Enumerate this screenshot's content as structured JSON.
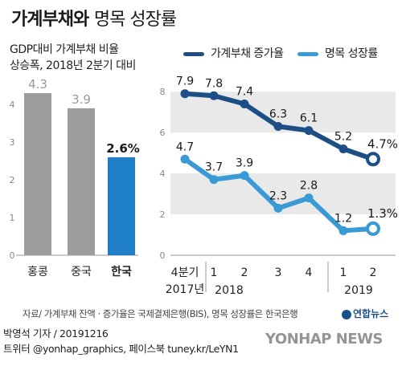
{
  "title": {
    "part1": "가계부채와",
    "part2": "명목 성장률"
  },
  "left_subtitle": {
    "line1": "GDP대비 가계부채 비율",
    "line2": "상승폭, 2018년 2분기 대비"
  },
  "legend": {
    "debt_label": "가계부채 증가율",
    "growth_label": "명목 성장률"
  },
  "colors": {
    "debt_line": "#1d4f86",
    "growth_line": "#3a9ad6",
    "bar_gray": "#9c9c9c",
    "bar_blue": "#1f7fc6",
    "band": "#e9e9e9"
  },
  "chart_data": [
    {
      "type": "bar",
      "categories": [
        "홍콩",
        "중국",
        "한국"
      ],
      "values": [
        4.3,
        3.9,
        2.6
      ],
      "value_labels": [
        "4.3",
        "3.9",
        "2.6%"
      ],
      "highlight_index": 2,
      "yticks": [
        "0",
        "1",
        "2",
        "3",
        "4"
      ],
      "ylim": [
        0,
        4.6
      ]
    },
    {
      "type": "line",
      "x_labels": [
        "4분기",
        "1",
        "2",
        "3",
        "4",
        "1",
        "2"
      ],
      "year_labels": [
        "2017년",
        "2018",
        "2019"
      ],
      "yticks": [
        "0",
        "2",
        "4",
        "6",
        "8"
      ],
      "ylim": [
        0,
        8.4
      ],
      "series": [
        {
          "name": "가계부채 증가율",
          "values": [
            7.9,
            7.8,
            7.4,
            6.3,
            6.1,
            5.2,
            4.7
          ],
          "labels": [
            "7.9",
            "7.8",
            "7.4",
            "6.3",
            "6.1",
            "5.2",
            "4.7%"
          ]
        },
        {
          "name": "명목 성장률",
          "values": [
            4.7,
            3.7,
            3.9,
            2.3,
            2.8,
            1.2,
            1.3
          ],
          "labels": [
            "4.7",
            "3.7",
            "3.9",
            "2.3",
            "2.8",
            "1.2",
            "1.3%"
          ]
        }
      ]
    }
  ],
  "source": "자료/ 가계부채 잔액 · 증가율은 국제결제은행(BIS), 명목 성장률은 한국은행",
  "credit": {
    "line1": "박영석 기자 / 20191216",
    "line2": "트위터 @yonhap_graphics, 페이스북 tuney.kr/LeYN1"
  },
  "logo_text": "연합뉴스",
  "watermark_text": "YONHAP NEWS"
}
